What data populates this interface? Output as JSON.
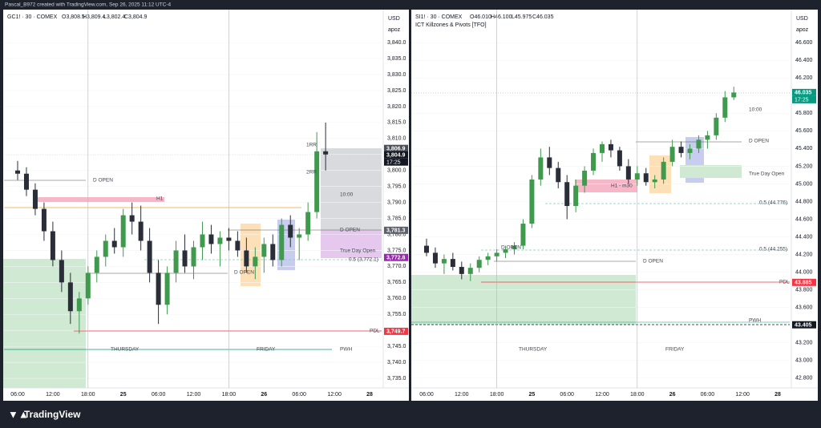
{
  "header": {
    "text": "Pascal_B972 created with TradingView.com, Sep 26, 2025 11:12 UTC-4"
  },
  "footer": {
    "brand": "TradingView"
  },
  "chart_data": [
    {
      "type": "candlestick",
      "symbol": "GC1! · 30 · COMEX",
      "ohlc": [
        "O3,808.5",
        "H3,809.4",
        "L3,802.4",
        "C3,804.9"
      ],
      "currency": "USD",
      "unit": "apoz",
      "up_color": "#3f9a4e",
      "down_color": "#2a2e39",
      "categories": [
        "06:00",
        null,
        null,
        null,
        "12:00",
        null,
        null,
        null,
        "18:00",
        null,
        null,
        null,
        "25",
        null,
        null,
        null,
        "06:00",
        null,
        null,
        null,
        "12:00",
        null,
        null,
        null,
        "18:00",
        null,
        null,
        null,
        "26",
        null,
        null,
        null,
        "06:00",
        null,
        null,
        null,
        "12:00",
        null,
        null,
        null,
        "28",
        null
      ],
      "open": [
        3800,
        3799,
        3794,
        3788,
        3781,
        3772,
        3765,
        3756,
        3760,
        3768,
        3773,
        3778,
        3776,
        3786,
        3784,
        3778,
        3768,
        3758,
        3768,
        3775,
        3770,
        3776,
        3780,
        3777,
        3779,
        3778,
        3775,
        3770,
        3773,
        3777,
        3772,
        3783,
        3779,
        3780,
        3787,
        3806,
        null,
        null,
        null,
        null,
        null,
        null
      ],
      "high": [
        3803,
        3801,
        3796,
        3790,
        3784,
        3775,
        3768,
        3762,
        3770,
        3775,
        3780,
        3782,
        3788,
        3790,
        3789,
        3782,
        3772,
        3770,
        3778,
        3780,
        3778,
        3784,
        3783,
        3781,
        3782,
        3781,
        3779,
        3776,
        3779,
        3780,
        3785,
        3786,
        3782,
        3790,
        3812,
        3815,
        null,
        null,
        null,
        null,
        null,
        null
      ],
      "low": [
        3797,
        3792,
        3786,
        3778,
        3770,
        3762,
        3752,
        3749,
        3758,
        3765,
        3770,
        3774,
        3773,
        3780,
        3775,
        3765,
        3752,
        3755,
        3765,
        3768,
        3766,
        3772,
        3774,
        3770,
        3775,
        3773,
        3768,
        3766,
        3768,
        3770,
        3770,
        3776,
        3772,
        3778,
        3785,
        3800,
        null,
        null,
        null,
        null,
        null,
        null
      ],
      "close": [
        3799,
        3794,
        3788,
        3781,
        3772,
        3765,
        3756,
        3760,
        3768,
        3773,
        3778,
        3776,
        3786,
        3784,
        3778,
        3768,
        3758,
        3768,
        3775,
        3770,
        3776,
        3780,
        3777,
        3779,
        3778,
        3775,
        3770,
        3773,
        3777,
        3772,
        3783,
        3779,
        3780,
        3787,
        3806,
        3805,
        null,
        null,
        null,
        null,
        null,
        null
      ],
      "ylim": [
        3732,
        3845.8
      ],
      "yticks": [
        {
          "value": 3735,
          "label": "3,735.0"
        },
        {
          "value": 3740,
          "label": "3,740.0"
        },
        {
          "value": 3745,
          "label": "3,745.0"
        },
        {
          "value": 3750,
          "label": "3,750.0"
        },
        {
          "value": 3755,
          "label": "3,755.0"
        },
        {
          "value": 3760,
          "label": "3,760.0"
        },
        {
          "value": 3765,
          "label": "3,765.0"
        },
        {
          "value": 3770,
          "label": "3,770.0"
        },
        {
          "value": 3775,
          "label": "3,775.0"
        },
        {
          "value": 3780,
          "label": "3,780.0"
        },
        {
          "value": 3785,
          "label": "3,785.0"
        },
        {
          "value": 3790,
          "label": "3,790.0"
        },
        {
          "value": 3795,
          "label": "3,795.0"
        },
        {
          "value": 3800,
          "label": "3,800.0"
        },
        {
          "value": 3805,
          "label": "3,805.0"
        },
        {
          "value": 3810,
          "label": "3,810.0"
        },
        {
          "value": 3815,
          "label": "3,815.0"
        },
        {
          "value": 3820,
          "label": "3,820.0"
        },
        {
          "value": 3825,
          "label": "3,825.0"
        },
        {
          "value": 3830,
          "label": "3,830.0"
        },
        {
          "value": 3835,
          "label": "3,835.0"
        },
        {
          "value": 3840,
          "label": "3,840.0"
        }
      ],
      "price_tags": [
        {
          "value": 3806.9,
          "label": "3,806.9",
          "color": "#4a4e59"
        },
        {
          "value": 3804.9,
          "label": "3,804.9",
          "color": "#131722",
          "countdown": "17:25"
        },
        {
          "value": 3781.3,
          "label": "3,781.3",
          "color": "#5d606b"
        },
        {
          "value": 3772.8,
          "label": "3,772.8",
          "color": "#9c27b0"
        },
        {
          "value": 3749.7,
          "label": "3,749.7",
          "color": "#f23645"
        }
      ],
      "annotations": [
        "D OPEN",
        "H1",
        "D OPEN",
        "True Day Open",
        "10:00",
        "0.5 (3,772.1)",
        "D OPEN",
        "1RR",
        "2RR",
        "PDL",
        "THURSDAY",
        "FRIDAY",
        "PWH"
      ]
    },
    {
      "type": "candlestick",
      "symbol": "SI1! · 30 · COMEX",
      "ohlc": [
        "O46.010",
        "H46.100",
        "L45.975",
        "C46.035"
      ],
      "currency": "USD",
      "unit": "apoz",
      "indicator": "ICT Killzones & Pivots [TFO]",
      "up_color": "#3f9a4e",
      "down_color": "#2a2e39",
      "categories": [
        "06:00",
        null,
        null,
        null,
        "12:00",
        null,
        null,
        null,
        "18:00",
        null,
        null,
        null,
        "25",
        null,
        null,
        null,
        "06:00",
        null,
        null,
        null,
        "12:00",
        null,
        null,
        null,
        "18:00",
        null,
        null,
        null,
        "26",
        null,
        null,
        null,
        "06:00",
        null,
        null,
        null,
        "12:00",
        null,
        null,
        null,
        "28",
        null
      ],
      "open": [
        44.3,
        44.22,
        44.1,
        44.15,
        44.06,
        43.98,
        44.05,
        44.14,
        44.18,
        44.22,
        44.26,
        44.3,
        44.55,
        45.05,
        45.3,
        45.18,
        45.02,
        44.75,
        44.98,
        45.15,
        45.35,
        45.45,
        45.38,
        45.2,
        45.05,
        45.12,
        45.02,
        45.05,
        45.25,
        45.42,
        45.35,
        45.4,
        45.5,
        45.55,
        45.75,
        45.98,
        null,
        null,
        null,
        null,
        null,
        null
      ],
      "high": [
        44.38,
        44.28,
        44.2,
        44.22,
        44.12,
        44.1,
        44.18,
        44.22,
        44.26,
        44.3,
        44.34,
        44.6,
        45.1,
        45.4,
        45.42,
        45.25,
        45.1,
        45.05,
        45.2,
        45.4,
        45.48,
        45.5,
        45.42,
        45.28,
        45.2,
        45.18,
        45.1,
        45.3,
        45.5,
        45.48,
        45.45,
        45.55,
        45.6,
        45.8,
        46.05,
        46.1,
        null,
        null,
        null,
        null,
        null,
        null
      ],
      "low": [
        44.18,
        44.05,
        43.98,
        44.02,
        43.92,
        43.9,
        44.0,
        44.08,
        44.12,
        44.16,
        44.2,
        44.26,
        44.5,
        44.98,
        45.1,
        44.95,
        44.6,
        44.68,
        44.9,
        45.1,
        45.25,
        45.3,
        45.15,
        45.0,
        44.98,
        44.98,
        44.95,
        45.0,
        45.2,
        45.3,
        45.28,
        45.35,
        45.4,
        45.5,
        45.7,
        45.95,
        null,
        null,
        null,
        null,
        null,
        null
      ],
      "close": [
        44.22,
        44.1,
        44.15,
        44.06,
        43.98,
        44.05,
        44.14,
        44.18,
        44.22,
        44.26,
        44.3,
        44.55,
        45.05,
        45.3,
        45.18,
        45.02,
        44.75,
        44.98,
        45.15,
        45.35,
        45.45,
        45.38,
        45.2,
        45.05,
        45.12,
        45.02,
        45.05,
        45.25,
        45.42,
        45.35,
        45.4,
        45.5,
        45.55,
        45.75,
        45.98,
        46.035,
        null,
        null,
        null,
        null,
        null,
        null
      ],
      "ylim": [
        42.69,
        46.81
      ],
      "yticks": [
        {
          "value": 42.8,
          "label": "42.800"
        },
        {
          "value": 43,
          "label": "43.000"
        },
        {
          "value": 43.2,
          "label": "43.200"
        },
        {
          "value": 43.4,
          "label": "43.400"
        },
        {
          "value": 43.6,
          "label": "43.600"
        },
        {
          "value": 43.8,
          "label": "43.800"
        },
        {
          "value": 44,
          "label": "44.000"
        },
        {
          "value": 44.2,
          "label": "44.200"
        },
        {
          "value": 44.4,
          "label": "44.400"
        },
        {
          "value": 44.6,
          "label": "44.600"
        },
        {
          "value": 44.8,
          "label": "44.800"
        },
        {
          "value": 45,
          "label": "45.000"
        },
        {
          "value": 45.2,
          "label": "45.200"
        },
        {
          "value": 45.4,
          "label": "45.400"
        },
        {
          "value": 45.6,
          "label": "45.600"
        },
        {
          "value": 45.8,
          "label": "45.800"
        },
        {
          "value": 46,
          "label": "46.000"
        },
        {
          "value": 46.2,
          "label": "46.200"
        },
        {
          "value": 46.4,
          "label": "46.400"
        },
        {
          "value": 46.6,
          "label": "46.600"
        }
      ],
      "price_tags": [
        {
          "value": 46.035,
          "label": "46.035",
          "color": "#089981",
          "countdown": "17:25"
        },
        {
          "value": 43.885,
          "label": "43.885",
          "color": "#f23645"
        },
        {
          "value": 43.405,
          "label": "43.405",
          "color": "#131722"
        }
      ],
      "annotations": [
        "10:00",
        "D OPEN",
        "True Day Open",
        "H1 - m30",
        "0.5 (44.776)",
        "0.5 (44.255)",
        "D OPEN",
        "D OPEN",
        "PDL",
        "PWH",
        "THURSDAY",
        "FRIDAY"
      ]
    }
  ]
}
